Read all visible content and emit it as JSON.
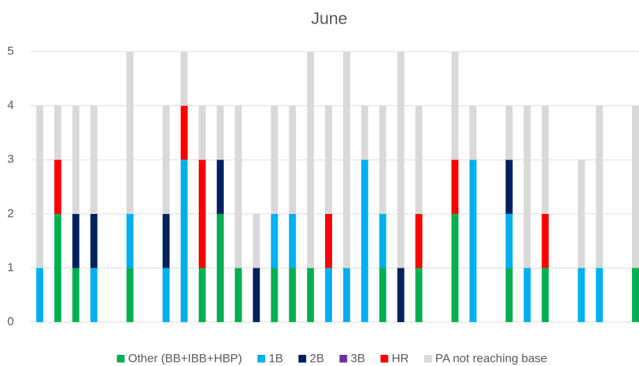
{
  "chart_data": {
    "type": "stacked_bar",
    "title": "June",
    "categories": [
      null,
      null,
      null,
      null,
      null,
      null,
      null,
      null,
      null,
      null,
      null,
      null,
      null,
      null,
      null,
      null,
      null,
      null,
      null,
      null,
      null,
      null,
      null,
      null,
      null,
      null,
      null,
      null,
      null,
      null,
      null,
      null,
      null,
      null
    ],
    "series": [
      {
        "name": "Other (BB+IBB+HBP)",
        "color": "#00b050",
        "values": [
          0,
          2,
          1,
          0,
          null,
          1,
          null,
          0,
          0,
          1,
          2,
          1,
          0,
          1,
          1,
          1,
          0,
          0,
          0,
          1,
          0,
          1,
          null,
          2,
          0,
          null,
          1,
          0,
          1,
          null,
          0,
          0,
          null,
          1
        ]
      },
      {
        "name": "1B",
        "color": "#00b0f0",
        "values": [
          1,
          0,
          0,
          1,
          null,
          1,
          null,
          1,
          3,
          0,
          0,
          0,
          0,
          1,
          1,
          0,
          1,
          1,
          3,
          1,
          0,
          0,
          null,
          0,
          3,
          null,
          1,
          1,
          0,
          null,
          1,
          1,
          null,
          0
        ]
      },
      {
        "name": "2B",
        "color": "#002060",
        "values": [
          0,
          0,
          1,
          1,
          null,
          0,
          null,
          1,
          0,
          0,
          1,
          0,
          1,
          0,
          0,
          0,
          0,
          0,
          0,
          0,
          1,
          0,
          null,
          0,
          0,
          null,
          1,
          0,
          0,
          null,
          0,
          0,
          null,
          0
        ]
      },
      {
        "name": "3B",
        "color": "#7030a0",
        "values": [
          0,
          0,
          0,
          0,
          null,
          0,
          null,
          0,
          0,
          0,
          0,
          0,
          0,
          0,
          0,
          0,
          0,
          0,
          0,
          0,
          0,
          0,
          null,
          0,
          0,
          null,
          0,
          0,
          0,
          null,
          0,
          0,
          null,
          0
        ]
      },
      {
        "name": "HR",
        "color": "#ff0000",
        "values": [
          0,
          1,
          0,
          0,
          null,
          0,
          null,
          0,
          1,
          2,
          0,
          0,
          0,
          0,
          0,
          0,
          1,
          0,
          0,
          0,
          0,
          1,
          null,
          1,
          0,
          null,
          0,
          0,
          1,
          null,
          0,
          0,
          null,
          0
        ]
      },
      {
        "name": "PA not reaching base",
        "color": "#d9d9d9",
        "values": [
          3,
          1,
          2,
          2,
          null,
          3,
          null,
          2,
          1,
          1,
          1,
          3,
          1,
          2,
          2,
          4,
          2,
          4,
          1,
          2,
          4,
          2,
          null,
          2,
          1,
          null,
          1,
          3,
          2,
          null,
          2,
          3,
          null,
          3
        ]
      }
    ],
    "ylim": [
      0,
      5
    ],
    "yticks": [
      0,
      1,
      2,
      3,
      4,
      5
    ],
    "grid": true,
    "legend": "bottom"
  }
}
